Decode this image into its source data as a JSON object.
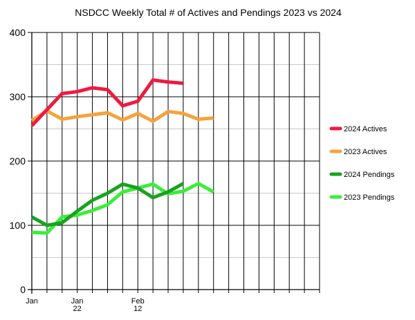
{
  "chart_data": {
    "type": "line",
    "title": "NSDCC Weekly Total # of Actives and Pendings 2023 vs 2024",
    "xlabel": "",
    "ylabel": "",
    "ylim": [
      0,
      400
    ],
    "yticks": [
      0,
      100,
      200,
      300,
      400
    ],
    "x_tick_labels": [
      {
        "week": 0,
        "lines": [
          "Jan"
        ]
      },
      {
        "week": 3,
        "lines": [
          "Jan",
          "22"
        ]
      },
      {
        "week": 7,
        "lines": [
          "Feb",
          "12"
        ]
      }
    ],
    "x_weeks": 19,
    "grid": true,
    "legend_position": "right",
    "series": [
      {
        "name": "2024 Actives",
        "color": "#ef1a3e",
        "values": [
          255,
          280,
          305,
          308,
          314,
          311,
          286,
          293,
          326,
          323,
          321
        ]
      },
      {
        "name": "2023 Actives",
        "color": "#f7a23b",
        "values": [
          263,
          278,
          265,
          269,
          272,
          275,
          264,
          274,
          262,
          277,
          274,
          265,
          267
        ]
      },
      {
        "name": "2024 Pendings",
        "color": "#17a31e",
        "values": [
          113,
          100,
          104,
          122,
          139,
          150,
          164,
          158,
          143,
          152,
          165
        ]
      },
      {
        "name": "2023 Pendings",
        "color": "#3aee3a",
        "values": [
          89,
          88,
          113,
          116,
          123,
          132,
          152,
          158,
          164,
          149,
          153,
          165,
          152
        ]
      }
    ]
  }
}
